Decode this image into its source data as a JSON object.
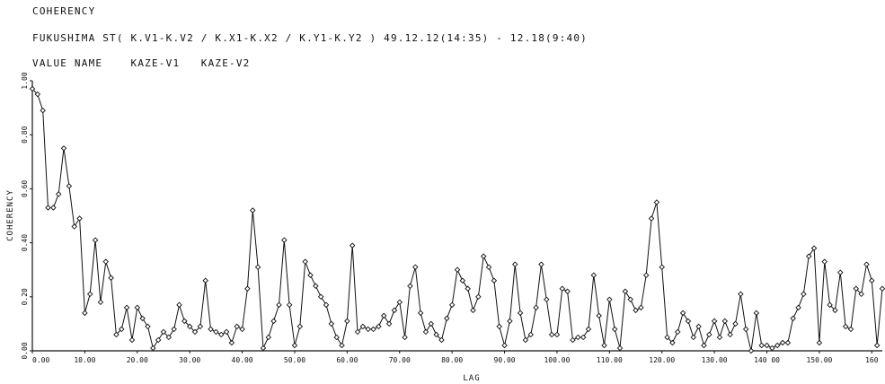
{
  "header": {
    "line1": "COHERENCY",
    "line2": "FUKUSHIMA ST( K.V1-K.V2 / K.X1-K.X2 / K.Y1-K.Y2 ) 49.12.12(14:35) - 12.18(9:40)",
    "line3": "VALUE NAME    KAZE-V1   KAZE-V2"
  },
  "chart_data": {
    "type": "line",
    "xlabel": "LAG",
    "ylabel": "COHERENCY",
    "xlim": [
      0,
      162
    ],
    "ylim": [
      0,
      1.0
    ],
    "x_ticks": [
      0,
      10,
      20,
      30,
      40,
      50,
      60,
      70,
      80,
      90,
      100,
      110,
      120,
      130,
      140,
      150,
      160
    ],
    "x_tick_labels": [
      "0.00",
      "10.00",
      "20.00",
      "30.00",
      "40.00",
      "50.00",
      "60.00",
      "70.00",
      "80.00",
      "90.00",
      "100.00",
      "110.00",
      "120.00",
      "130.00",
      "140 00",
      "150.00",
      "160"
    ],
    "y_ticks": [
      0,
      0.2,
      0.4,
      0.6,
      0.8,
      1.0
    ],
    "y_tick_labels": [
      "0.00",
      "0.20",
      "0.40",
      "0.60",
      "0.80",
      "1.00"
    ],
    "marker": "diamond",
    "series": [
      {
        "x": [
          0,
          1,
          2,
          3,
          4,
          5,
          6,
          7,
          8,
          9,
          10,
          11,
          12,
          13,
          14,
          15,
          16,
          17,
          18,
          19,
          20,
          21,
          22,
          23,
          24,
          25,
          26,
          27,
          28,
          29,
          30,
          31,
          32,
          33,
          34,
          35,
          36,
          37,
          38,
          39,
          40,
          41,
          42,
          43,
          44,
          45,
          46,
          47,
          48,
          49,
          50,
          51,
          52,
          53,
          54,
          55,
          56,
          57,
          58,
          59,
          60,
          61,
          62,
          63,
          64,
          65,
          66,
          67,
          68,
          69,
          70,
          71,
          72,
          73,
          74,
          75,
          76,
          77,
          78,
          79,
          80,
          81,
          82,
          83,
          84,
          85,
          86,
          87,
          88,
          89,
          90,
          91,
          92,
          93,
          94,
          95,
          96,
          97,
          98,
          99,
          100,
          101,
          102,
          103,
          104,
          105,
          106,
          107,
          108,
          109,
          110,
          111,
          112,
          113,
          114,
          115,
          116,
          117,
          118,
          119,
          120,
          121,
          122,
          123,
          124,
          125,
          126,
          127,
          128,
          129,
          130,
          131,
          132,
          133,
          134,
          135,
          136,
          137,
          138,
          139,
          140,
          141,
          142,
          143,
          144,
          145,
          146,
          147,
          148,
          149,
          150,
          151,
          152,
          153,
          154,
          155,
          156,
          157,
          158,
          159,
          160,
          161,
          162
        ],
        "y": [
          0.97,
          0.95,
          0.89,
          0.53,
          0.53,
          0.58,
          0.75,
          0.61,
          0.46,
          0.49,
          0.14,
          0.21,
          0.41,
          0.18,
          0.33,
          0.27,
          0.06,
          0.08,
          0.16,
          0.04,
          0.16,
          0.12,
          0.09,
          0.01,
          0.04,
          0.07,
          0.05,
          0.08,
          0.17,
          0.11,
          0.09,
          0.07,
          0.09,
          0.26,
          0.08,
          0.07,
          0.06,
          0.07,
          0.03,
          0.09,
          0.08,
          0.23,
          0.52,
          0.31,
          0.01,
          0.05,
          0.11,
          0.17,
          0.41,
          0.17,
          0.02,
          0.09,
          0.33,
          0.28,
          0.24,
          0.2,
          0.17,
          0.1,
          0.05,
          0.02,
          0.11,
          0.39,
          0.07,
          0.09,
          0.08,
          0.08,
          0.09,
          0.13,
          0.1,
          0.15,
          0.18,
          0.05,
          0.24,
          0.31,
          0.14,
          0.07,
          0.1,
          0.06,
          0.04,
          0.12,
          0.17,
          0.3,
          0.26,
          0.23,
          0.15,
          0.2,
          0.35,
          0.31,
          0.26,
          0.09,
          0.02,
          0.11,
          0.32,
          0.14,
          0.04,
          0.06,
          0.16,
          0.32,
          0.19,
          0.06,
          0.06,
          0.23,
          0.22,
          0.04,
          0.05,
          0.05,
          0.08,
          0.28,
          0.13,
          0.02,
          0.19,
          0.08,
          0.01,
          0.22,
          0.19,
          0.15,
          0.16,
          0.28,
          0.49,
          0.55,
          0.31,
          0.05,
          0.03,
          0.07,
          0.14,
          0.11,
          0.05,
          0.09,
          0.02,
          0.06,
          0.11,
          0.05,
          0.11,
          0.06,
          0.1,
          0.21,
          0.08,
          0.0,
          0.14,
          0.02,
          0.02,
          0.01,
          0.02,
          0.03,
          0.03,
          0.12,
          0.16,
          0.21,
          0.35,
          0.38,
          0.03,
          0.33,
          0.17,
          0.15,
          0.29,
          0.09,
          0.08,
          0.23,
          0.21,
          0.32,
          0.26,
          0.02,
          0.23
        ]
      }
    ]
  }
}
